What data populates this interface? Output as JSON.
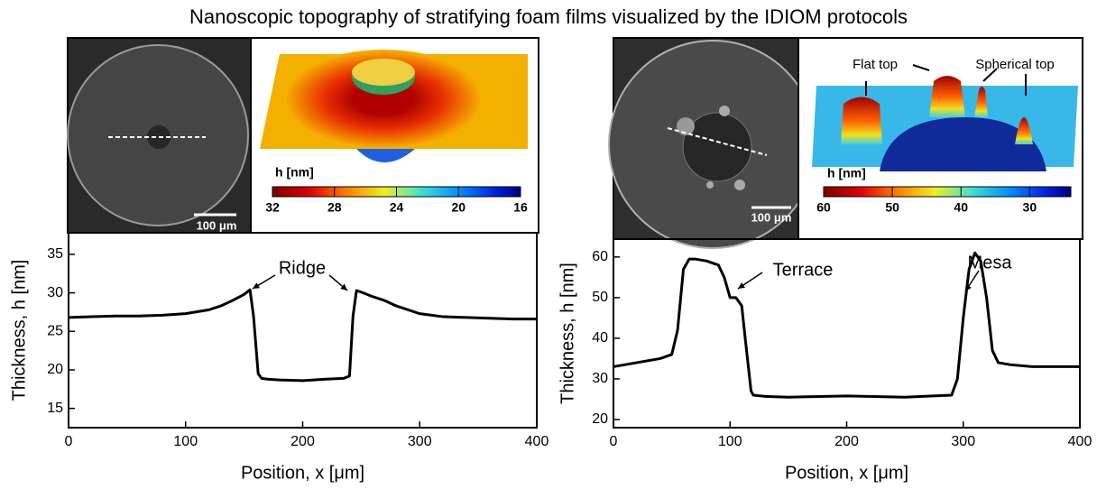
{
  "title": "Nanoscopic topography of stratifying foam films visualized by the IDIOM protocols",
  "chart_data": [
    {
      "type": "line",
      "x_label": "Position, x [μm]",
      "y_label": "Thickness, h [nm]",
      "xlim": [
        0,
        400
      ],
      "ylim": [
        12.5,
        37.8
      ],
      "xticks": [
        0,
        100,
        200,
        300,
        400
      ],
      "yticks": [
        15,
        20,
        25,
        30,
        35
      ],
      "x": [
        0,
        20,
        40,
        60,
        80,
        100,
        120,
        130,
        140,
        150,
        155,
        158,
        162,
        165,
        170,
        180,
        200,
        220,
        235,
        240,
        243,
        246,
        250,
        260,
        270,
        280,
        290,
        300,
        320,
        340,
        360,
        380,
        400
      ],
      "series": [
        {
          "color": "#000000",
          "values": [
            26.8,
            26.9,
            27,
            27,
            27.1,
            27.3,
            27.8,
            28.3,
            29,
            29.8,
            30.4,
            27,
            19.5,
            18.9,
            18.8,
            18.7,
            18.6,
            18.8,
            18.9,
            19.2,
            27,
            30.3,
            30.1,
            29.5,
            29,
            28.3,
            27.8,
            27.3,
            26.9,
            26.8,
            26.7,
            26.6,
            26.6
          ]
        }
      ],
      "annotations": [
        "Ridge"
      ],
      "inset": {
        "scale_bar": "100 μm",
        "colorbar": {
          "label": "h [nm]",
          "lim": [
            32,
            16
          ],
          "ticks": [
            32,
            28,
            24,
            20,
            16
          ]
        },
        "annotations": []
      }
    },
    {
      "type": "line",
      "x_label": "Position, x [μm]",
      "y_label": "Thickness, h [nm]",
      "xlim": [
        0,
        400
      ],
      "ylim": [
        18,
        64.4
      ],
      "xticks": [
        0,
        100,
        200,
        300,
        400
      ],
      "yticks": [
        20,
        30,
        40,
        50,
        60
      ],
      "x": [
        0,
        20,
        40,
        50,
        55,
        60,
        65,
        70,
        80,
        90,
        95,
        100,
        105,
        110,
        113,
        118,
        120,
        130,
        150,
        200,
        250,
        290,
        295,
        300,
        305,
        310,
        315,
        320,
        325,
        330,
        340,
        360,
        380,
        400
      ],
      "series": [
        {
          "color": "#000000",
          "values": [
            33,
            34,
            35,
            36,
            42,
            57,
            59.5,
            59.5,
            59,
            58,
            55,
            50,
            50,
            48,
            40,
            27,
            26,
            25.7,
            25.5,
            25.8,
            25.5,
            26,
            30,
            45,
            57,
            61,
            59,
            50,
            37,
            34,
            33.5,
            33,
            33,
            33
          ]
        }
      ],
      "annotations": [
        "Terrace",
        "Mesa"
      ],
      "inset": {
        "scale_bar": "100 μm",
        "colorbar": {
          "label": "h [nm]",
          "lim": [
            60,
            24
          ],
          "ticks": [
            60,
            50,
            40,
            30
          ]
        },
        "annotations": [
          "Flat top",
          "Spherical top"
        ]
      }
    }
  ]
}
